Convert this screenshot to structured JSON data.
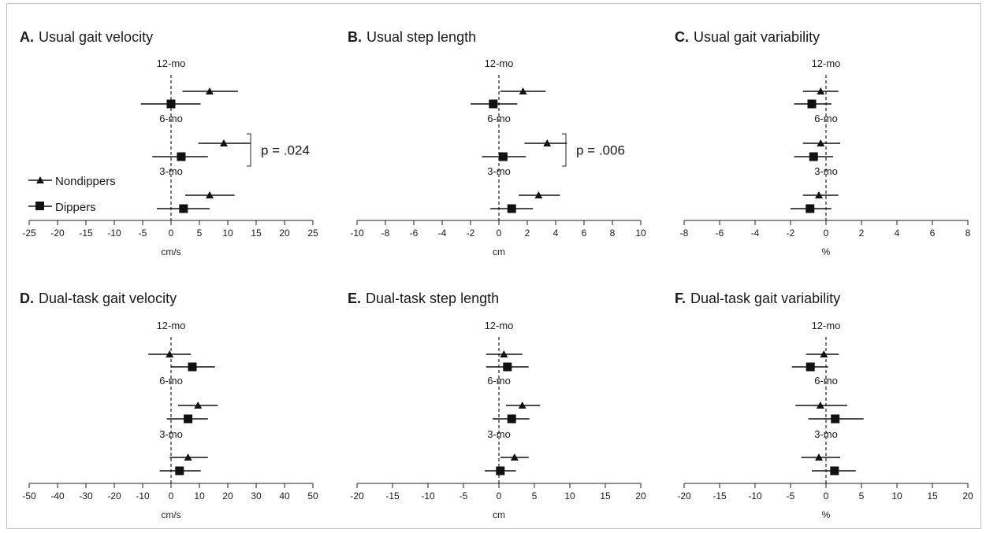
{
  "chart_data": [
    {
      "type": "forest",
      "panel": "A.",
      "title": "Usual gait velocity",
      "xlabel": "cm/s",
      "xlim": [
        -25,
        25
      ],
      "xticks": [
        -25,
        -20,
        -15,
        -10,
        -5,
        0,
        5,
        10,
        15,
        20,
        25
      ],
      "groups": [
        {
          "label": "12-mo",
          "nondippers": {
            "mean": 6.8,
            "low": 2.0,
            "high": 11.8
          },
          "dippers": {
            "mean": 0.0,
            "low": -5.3,
            "high": 5.2
          }
        },
        {
          "label": "6-mo",
          "nondippers": {
            "mean": 9.3,
            "low": 4.8,
            "high": 14.0
          },
          "dippers": {
            "mean": 1.8,
            "low": -3.3,
            "high": 6.5
          }
        },
        {
          "label": "3-mo",
          "nondippers": {
            "mean": 6.8,
            "low": 2.5,
            "high": 11.2
          },
          "dippers": {
            "mean": 2.2,
            "low": -2.5,
            "high": 6.8
          }
        }
      ],
      "annotation": {
        "text": "p = .024",
        "group": "6-mo"
      }
    },
    {
      "type": "forest",
      "panel": "B.",
      "title": "Usual step length",
      "xlabel": "cm",
      "xlim": [
        -10,
        10
      ],
      "xticks": [
        -10,
        -8,
        -6,
        -4,
        -2,
        0,
        2,
        4,
        6,
        8,
        10
      ],
      "groups": [
        {
          "label": "12-mo",
          "nondippers": {
            "mean": 1.7,
            "low": 0.1,
            "high": 3.3
          },
          "dippers": {
            "mean": -0.4,
            "low": -2.0,
            "high": 1.3
          }
        },
        {
          "label": "6-mo",
          "nondippers": {
            "mean": 3.4,
            "low": 1.8,
            "high": 4.8
          },
          "dippers": {
            "mean": 0.3,
            "low": -1.2,
            "high": 1.9
          }
        },
        {
          "label": "3-mo",
          "nondippers": {
            "mean": 2.8,
            "low": 1.4,
            "high": 4.3
          },
          "dippers": {
            "mean": 0.9,
            "low": -0.6,
            "high": 2.4
          }
        }
      ],
      "annotation": {
        "text": "p = .006",
        "group": "6-mo"
      }
    },
    {
      "type": "forest",
      "panel": "C.",
      "title": "Usual gait variability",
      "xlabel": "%",
      "xlim": [
        -8,
        8
      ],
      "xticks": [
        -8,
        -6,
        -4,
        -2,
        0,
        2,
        4,
        6,
        8
      ],
      "groups": [
        {
          "label": "12-mo",
          "nondippers": {
            "mean": -0.3,
            "low": -1.3,
            "high": 0.7
          },
          "dippers": {
            "mean": -0.8,
            "low": -1.8,
            "high": 0.3
          }
        },
        {
          "label": "6-mo",
          "nondippers": {
            "mean": -0.3,
            "low": -1.3,
            "high": 0.8
          },
          "dippers": {
            "mean": -0.7,
            "low": -1.8,
            "high": 0.4
          }
        },
        {
          "label": "3-mo",
          "nondippers": {
            "mean": -0.4,
            "low": -1.3,
            "high": 0.7
          },
          "dippers": {
            "mean": -0.9,
            "low": -2.0,
            "high": 0.3
          }
        }
      ]
    },
    {
      "type": "forest",
      "panel": "D.",
      "title": "Dual-task gait velocity",
      "xlabel": "cm/s",
      "xlim": [
        -50,
        50
      ],
      "xticks": [
        -50,
        -40,
        -30,
        -20,
        -10,
        0,
        10,
        20,
        30,
        40,
        50
      ],
      "groups": [
        {
          "label": "12-mo",
          "nondippers": {
            "mean": -0.5,
            "low": -8.0,
            "high": 7.0
          },
          "dippers": {
            "mean": 7.5,
            "low": 0.0,
            "high": 15.5
          }
        },
        {
          "label": "6-mo",
          "nondippers": {
            "mean": 9.5,
            "low": 2.5,
            "high": 16.5
          },
          "dippers": {
            "mean": 6.0,
            "low": -1.5,
            "high": 13.0
          }
        },
        {
          "label": "3-mo",
          "nondippers": {
            "mean": 6.0,
            "low": -0.5,
            "high": 13.0
          },
          "dippers": {
            "mean": 3.0,
            "low": -4.0,
            "high": 10.5
          }
        }
      ]
    },
    {
      "type": "forest",
      "panel": "E.",
      "title": "Dual-task step length",
      "xlabel": "cm",
      "xlim": [
        -20,
        20
      ],
      "xticks": [
        -20,
        -15,
        -10,
        -5,
        0,
        5,
        10,
        15,
        20
      ],
      "groups": [
        {
          "label": "12-mo",
          "nondippers": {
            "mean": 0.7,
            "low": -1.8,
            "high": 3.3
          },
          "dippers": {
            "mean": 1.2,
            "low": -1.8,
            "high": 4.2
          }
        },
        {
          "label": "6-mo",
          "nondippers": {
            "mean": 3.3,
            "low": 1.0,
            "high": 5.8
          },
          "dippers": {
            "mean": 1.8,
            "low": -0.9,
            "high": 4.3
          }
        },
        {
          "label": "3-mo",
          "nondippers": {
            "mean": 2.2,
            "low": 0.2,
            "high": 4.2
          },
          "dippers": {
            "mean": 0.2,
            "low": -2.0,
            "high": 2.4
          }
        }
      ]
    },
    {
      "type": "forest",
      "panel": "F.",
      "title": "Dual-task gait variability",
      "xlabel": "%",
      "xlim": [
        -20,
        20
      ],
      "xticks": [
        -20,
        -15,
        -10,
        -5,
        0,
        5,
        10,
        15,
        20
      ],
      "groups": [
        {
          "label": "12-mo",
          "nondippers": {
            "mean": -0.3,
            "low": -2.8,
            "high": 1.8
          },
          "dippers": {
            "mean": -2.2,
            "low": -4.8,
            "high": 0.3
          }
        },
        {
          "label": "6-mo",
          "nondippers": {
            "mean": -0.8,
            "low": -4.3,
            "high": 3.0
          },
          "dippers": {
            "mean": 1.3,
            "low": -2.5,
            "high": 5.3
          }
        },
        {
          "label": "3-mo",
          "nondippers": {
            "mean": -1.0,
            "low": -3.5,
            "high": 2.0
          },
          "dippers": {
            "mean": 1.2,
            "low": -2.0,
            "high": 4.2
          }
        }
      ]
    }
  ],
  "legend": {
    "placement": "left",
    "entries": [
      {
        "label": "Nondippers",
        "marker": "triangle"
      },
      {
        "label": "Dippers",
        "marker": "square"
      }
    ]
  }
}
